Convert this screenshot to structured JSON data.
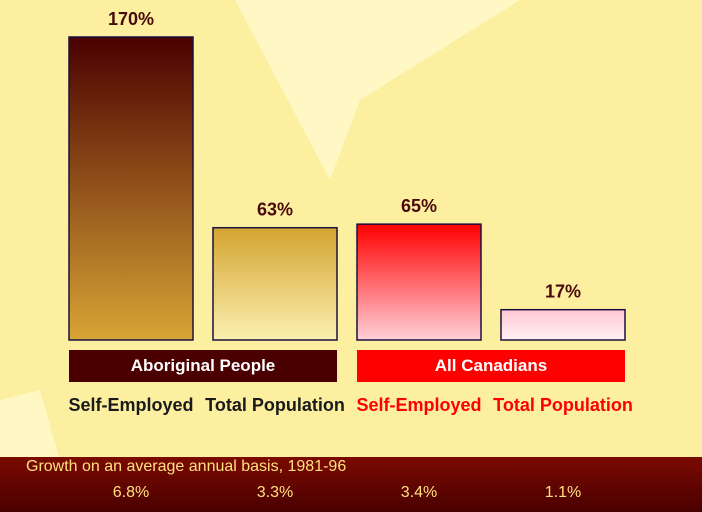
{
  "chart_data": {
    "type": "bar",
    "categories": [
      "Self-Employed",
      "Total Population",
      "Self-Employed",
      "Total Population"
    ],
    "category_colors": [
      "#1a1a1a",
      "#1a1a1a",
      "#ff0000",
      "#ff0000"
    ],
    "values": [
      170,
      63,
      65,
      17
    ],
    "value_labels": [
      "170%",
      "63%",
      "65%",
      "17%"
    ],
    "colors": [
      [
        "#4a0000",
        "#d8a535"
      ],
      [
        "#d4a430",
        "#fbf0b0"
      ],
      [
        "#ff0000",
        "#ffd0d8"
      ],
      [
        "#ffc8d4",
        "#fff0f4"
      ]
    ],
    "groups": [
      {
        "name": "Aboriginal People",
        "color": "#4a0000"
      },
      {
        "name": "All Canadians",
        "color": "#ff0000"
      }
    ],
    "growth": {
      "title": "Growth on an average annual basis, 1981-96",
      "values": [
        6.8,
        3.3,
        3.4,
        1.1
      ],
      "value_labels": [
        "6.8%",
        "3.3%",
        "3.4%",
        "1.1%"
      ]
    }
  }
}
